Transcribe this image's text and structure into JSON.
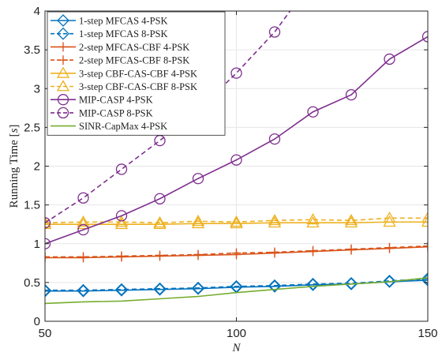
{
  "chart_data": {
    "type": "line",
    "xlabel": "N",
    "ylabel": "Running Time [s]",
    "xlim": [
      50,
      150
    ],
    "ylim": [
      0,
      4
    ],
    "xticks": [
      50,
      100,
      150
    ],
    "yticks": [
      0,
      0.5,
      1,
      1.5,
      2,
      2.5,
      3,
      3.5,
      4
    ],
    "x": [
      50,
      60,
      70,
      80,
      90,
      100,
      110,
      120,
      130,
      140,
      150
    ],
    "grid": true,
    "legend_position": "top-left",
    "series": [
      {
        "name": "1-step MFCAS 4-PSK",
        "color": "#0072BD",
        "dash": "solid",
        "marker": "diamond",
        "values": [
          0.39,
          0.39,
          0.4,
          0.41,
          0.42,
          0.44,
          0.45,
          0.47,
          0.48,
          0.51,
          0.53
        ]
      },
      {
        "name": "1-step MFCAS 8-PSK",
        "color": "#0072BD",
        "dash": "dashed",
        "marker": "diamond",
        "values": [
          0.4,
          0.4,
          0.41,
          0.42,
          0.43,
          0.45,
          0.46,
          0.48,
          0.49,
          0.52,
          0.55
        ]
      },
      {
        "name": "2-step MFCAS-CBF 4-PSK",
        "color": "#D95319",
        "dash": "solid",
        "marker": "plus",
        "values": [
          0.82,
          0.82,
          0.83,
          0.84,
          0.85,
          0.86,
          0.88,
          0.9,
          0.92,
          0.94,
          0.96
        ]
      },
      {
        "name": "2-step MFCAS-CBF 8-PSK",
        "color": "#D95319",
        "dash": "dashed",
        "marker": "plus",
        "values": [
          0.83,
          0.83,
          0.84,
          0.85,
          0.86,
          0.88,
          0.89,
          0.91,
          0.93,
          0.95,
          0.97
        ]
      },
      {
        "name": "3-step CBF-CAS-CBF 4-PSK",
        "color": "#EDB120",
        "dash": "solid",
        "marker": "triangle",
        "values": [
          1.25,
          1.25,
          1.25,
          1.25,
          1.26,
          1.26,
          1.27,
          1.27,
          1.27,
          1.28,
          1.28
        ]
      },
      {
        "name": "3-step CBF-CAS-CBF 8-PSK",
        "color": "#EDB120",
        "dash": "dashed",
        "marker": "triangle",
        "values": [
          1.27,
          1.28,
          1.28,
          1.27,
          1.29,
          1.28,
          1.3,
          1.31,
          1.3,
          1.33,
          1.33
        ]
      },
      {
        "name": "MIP-CASP 4-PSK",
        "color": "#7E2F8E",
        "dash": "solid",
        "marker": "circle",
        "values": [
          1.0,
          1.18,
          1.36,
          1.58,
          1.84,
          2.08,
          2.35,
          2.7,
          2.92,
          3.38,
          3.67
        ]
      },
      {
        "name": "MIP-CASP 8-PSK",
        "color": "#7E2F8E",
        "dash": "dashed",
        "marker": "circle",
        "values": [
          1.27,
          1.59,
          1.96,
          2.33,
          2.72,
          3.2,
          3.73,
          4.4,
          null,
          null,
          null
        ]
      },
      {
        "name": "SINR-CapMax 4-PSK",
        "color": "#77AC30",
        "dash": "solid",
        "marker": "none",
        "values": [
          0.23,
          0.25,
          0.26,
          0.29,
          0.32,
          0.37,
          0.41,
          0.45,
          0.48,
          0.51,
          0.56
        ]
      }
    ]
  }
}
